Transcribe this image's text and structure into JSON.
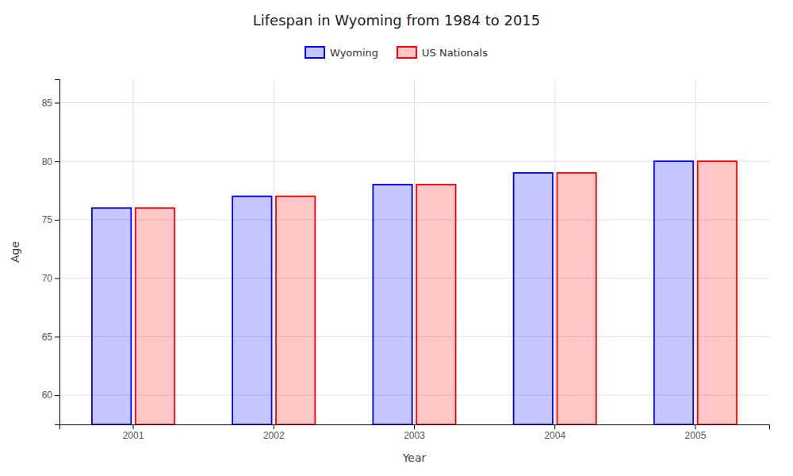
{
  "chart_data": {
    "type": "bar",
    "title": "Lifespan in Wyoming from 1984 to 2015",
    "xlabel": "Year",
    "ylabel": "Age",
    "categories": [
      "2001",
      "2002",
      "2003",
      "2004",
      "2005"
    ],
    "series": [
      {
        "name": "Wyoming",
        "color": "#0000ff",
        "values": [
          76,
          77,
          78,
          79,
          80
        ]
      },
      {
        "name": "US Nationals",
        "color": "#ff0000",
        "values": [
          76,
          77,
          78,
          79,
          80
        ]
      }
    ],
    "ylim": [
      57.5,
      87
    ],
    "yticks": [
      60,
      65,
      70,
      75,
      80,
      85
    ],
    "grid": true,
    "legend": "top"
  }
}
